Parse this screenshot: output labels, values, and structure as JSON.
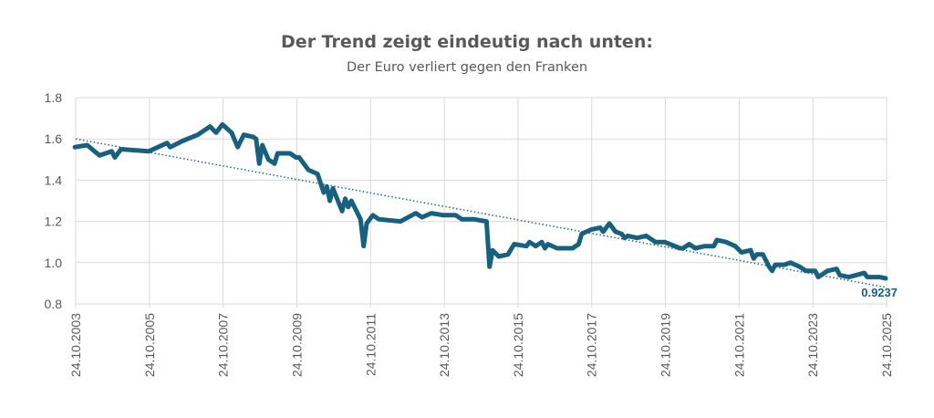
{
  "chart_data": {
    "type": "line",
    "title": "Der Trend zeigt eindeutig nach unten:",
    "subtitle": "Der Euro verliert gegen den Franken",
    "xlabel": "",
    "ylabel": "",
    "ylim": [
      0.8,
      1.8
    ],
    "yticks": [
      "1.8",
      "1.6",
      "1.4",
      "1.2",
      "1.0",
      "0.8"
    ],
    "xlim": [
      "2003-10-24",
      "2025-10-24"
    ],
    "xticks": [
      "24.10.2003",
      "24.10.2005",
      "24.10.2007",
      "24.10.2009",
      "24.10.2011",
      "24.10.2013",
      "24.10.2015",
      "24.10.2017",
      "24.10.2019",
      "24.10.2021",
      "24.10.2023",
      "24.10.2025"
    ],
    "grid": true,
    "legend": "none",
    "colors": {
      "series": "#17607f",
      "trend": "#2a6f8f",
      "grid": "#d9d9d9",
      "text": "#595959"
    },
    "series": [
      {
        "points": [
          [
            "2003-10",
            1.56
          ],
          [
            "2004-02",
            1.57
          ],
          [
            "2004-06",
            1.52
          ],
          [
            "2004-10",
            1.54
          ],
          [
            "2004-11",
            1.51
          ],
          [
            "2005-01",
            1.55
          ],
          [
            "2005-10",
            1.54
          ],
          [
            "2006-04",
            1.58
          ],
          [
            "2006-05",
            1.56
          ],
          [
            "2006-09",
            1.59
          ],
          [
            "2007-02",
            1.62
          ],
          [
            "2007-06",
            1.66
          ],
          [
            "2007-08",
            1.63
          ],
          [
            "2007-10",
            1.67
          ],
          [
            "2008-01",
            1.63
          ],
          [
            "2008-03",
            1.56
          ],
          [
            "2008-05",
            1.62
          ],
          [
            "2008-08",
            1.61
          ],
          [
            "2008-09",
            1.6
          ],
          [
            "2008-10",
            1.48
          ],
          [
            "2008-11",
            1.57
          ],
          [
            "2009-01",
            1.5
          ],
          [
            "2009-03",
            1.48
          ],
          [
            "2009-04",
            1.53
          ],
          [
            "2009-08",
            1.53
          ],
          [
            "2009-10",
            1.51
          ],
          [
            "2009-11",
            1.51
          ],
          [
            "2010-02",
            1.45
          ],
          [
            "2010-05",
            1.43
          ],
          [
            "2010-07",
            1.34
          ],
          [
            "2010-08",
            1.37
          ],
          [
            "2010-09",
            1.3
          ],
          [
            "2010-10",
            1.36
          ],
          [
            "2011-01",
            1.25
          ],
          [
            "2011-02",
            1.31
          ],
          [
            "2011-03",
            1.27
          ],
          [
            "2011-04",
            1.3
          ],
          [
            "2011-07",
            1.21
          ],
          [
            "2011-08",
            1.08
          ],
          [
            "2011-09",
            1.19
          ],
          [
            "2011-11",
            1.23
          ],
          [
            "2012-01",
            1.21
          ],
          [
            "2012-08",
            1.2
          ],
          [
            "2013-01",
            1.24
          ],
          [
            "2013-03",
            1.22
          ],
          [
            "2013-06",
            1.24
          ],
          [
            "2013-10",
            1.23
          ],
          [
            "2014-02",
            1.23
          ],
          [
            "2014-04",
            1.21
          ],
          [
            "2014-08",
            1.21
          ],
          [
            "2014-12",
            1.2
          ],
          [
            "2015-01",
            0.98
          ],
          [
            "2015-02",
            1.06
          ],
          [
            "2015-04",
            1.03
          ],
          [
            "2015-07",
            1.04
          ],
          [
            "2015-09",
            1.09
          ],
          [
            "2016-01",
            1.08
          ],
          [
            "2016-02",
            1.1
          ],
          [
            "2016-04",
            1.08
          ],
          [
            "2016-06",
            1.1
          ],
          [
            "2016-07",
            1.07
          ],
          [
            "2016-08",
            1.09
          ],
          [
            "2016-11",
            1.07
          ],
          [
            "2017-04",
            1.07
          ],
          [
            "2017-06",
            1.09
          ],
          [
            "2017-07",
            1.14
          ],
          [
            "2017-10",
            1.16
          ],
          [
            "2018-01",
            1.17
          ],
          [
            "2018-02",
            1.15
          ],
          [
            "2018-04",
            1.19
          ],
          [
            "2018-06",
            1.15
          ],
          [
            "2018-08",
            1.14
          ],
          [
            "2018-09",
            1.12
          ],
          [
            "2018-10",
            1.13
          ],
          [
            "2019-01",
            1.12
          ],
          [
            "2019-04",
            1.13
          ],
          [
            "2019-07",
            1.1
          ],
          [
            "2019-10",
            1.1
          ],
          [
            "2020-03",
            1.07
          ],
          [
            "2020-04",
            1.07
          ],
          [
            "2020-06",
            1.09
          ],
          [
            "2020-08",
            1.07
          ],
          [
            "2020-11",
            1.08
          ],
          [
            "2021-02",
            1.08
          ],
          [
            "2021-03",
            1.11
          ],
          [
            "2021-06",
            1.1
          ],
          [
            "2021-09",
            1.08
          ],
          [
            "2021-11",
            1.05
          ],
          [
            "2022-02",
            1.06
          ],
          [
            "2022-03",
            1.02
          ],
          [
            "2022-04",
            1.04
          ],
          [
            "2022-06",
            1.04
          ],
          [
            "2022-08",
            0.98
          ],
          [
            "2022-09",
            0.96
          ],
          [
            "2022-10",
            0.99
          ],
          [
            "2023-01",
            0.99
          ],
          [
            "2023-03",
            1.0
          ],
          [
            "2023-06",
            0.98
          ],
          [
            "2023-08",
            0.96
          ],
          [
            "2023-11",
            0.96
          ],
          [
            "2023-12",
            0.93
          ],
          [
            "2024-03",
            0.96
          ],
          [
            "2024-06",
            0.97
          ],
          [
            "2024-07",
            0.94
          ],
          [
            "2024-10",
            0.93
          ],
          [
            "2025-03",
            0.95
          ],
          [
            "2025-04",
            0.93
          ],
          [
            "2025-08",
            0.93
          ],
          [
            "2025-10",
            0.9237
          ]
        ]
      }
    ],
    "trendline": {
      "style": "dotted",
      "linear": true,
      "start": [
        "2003-10-24",
        1.6
      ],
      "end": [
        "2025-10-24",
        0.88
      ]
    },
    "annotations": [
      {
        "text": "0.9237",
        "at": [
          "2025-10-24",
          0.9237
        ]
      }
    ]
  }
}
